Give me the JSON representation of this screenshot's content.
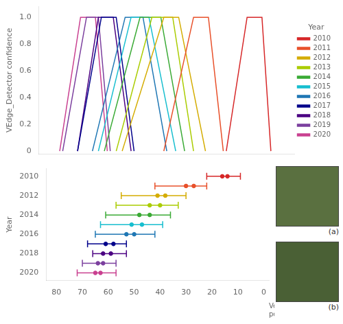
{
  "chart_data": [
    {
      "type": "line",
      "ylabel": "VEdge_Detector confidence",
      "legend_title": "Year",
      "legend": "right",
      "xlim": [
        84,
        -2
      ],
      "xticks": [
        80,
        70,
        60,
        50,
        40,
        30,
        20,
        10,
        0
      ],
      "ylim": [
        -0.02,
        1.08
      ],
      "yticks": [
        0,
        0.2,
        0.4,
        0.6,
        0.8,
        1
      ],
      "grid": false,
      "tick_labels": "y",
      "series": [
        {
          "name": "2010",
          "color": "#d62728",
          "x": [
            6,
            9,
            14,
            21
          ],
          "values": [
            0,
            1,
            1,
            0
          ]
        },
        {
          "name": "2011",
          "color": "#e8502a",
          "x": [
            22,
            27,
            32,
            42
          ],
          "values": [
            0,
            1,
            1,
            0
          ]
        },
        {
          "name": "2012",
          "color": "#d4ac00",
          "x": [
            28,
            37,
            42,
            56
          ],
          "values": [
            0,
            1,
            1,
            0
          ]
        },
        {
          "name": "2013",
          "color": "#aacc00",
          "x": [
            32,
            39,
            46,
            58
          ],
          "values": [
            0,
            1,
            1,
            0
          ]
        },
        {
          "name": "2014",
          "color": "#3aaa35",
          "x": [
            35,
            43,
            50,
            62
          ],
          "values": [
            0,
            1,
            1,
            0
          ]
        },
        {
          "name": "2015",
          "color": "#17becf",
          "x": [
            38,
            47,
            53,
            64
          ],
          "values": [
            0,
            1,
            1,
            0
          ]
        },
        {
          "name": "2016",
          "color": "#1f77b4",
          "x": [
            41,
            49,
            55,
            66
          ],
          "values": [
            0,
            1,
            1,
            0
          ]
        },
        {
          "name": "2017",
          "color": "#00008b",
          "x": [
            52,
            58,
            63,
            71
          ],
          "values": [
            0,
            1,
            1,
            0
          ]
        },
        {
          "name": "2018",
          "color": "#4b0082",
          "x": [
            53,
            59,
            64,
            71
          ],
          "values": [
            0,
            1,
            1,
            0
          ]
        },
        {
          "name": "2019",
          "color": "#7b3f9e",
          "x": [
            60,
            64,
            68,
            76
          ],
          "values": [
            0,
            1,
            1,
            0
          ]
        },
        {
          "name": "2020",
          "color": "#c94090",
          "x": [
            61,
            65,
            70,
            77
          ],
          "values": [
            0,
            1,
            1,
            0
          ]
        }
      ]
    },
    {
      "type": "range",
      "ylabel": "Year",
      "xlabel": "Vegetation curve\nposition (m)",
      "categories": [
        "2010",
        null,
        "2012",
        null,
        "2014",
        null,
        "2016",
        null,
        "2018",
        null,
        "2020"
      ],
      "bar_l": [
        9,
        22,
        30,
        33,
        36,
        39,
        42,
        53,
        53,
        57,
        57
      ],
      "bar_r": [
        22,
        42,
        55,
        57,
        61,
        63,
        65,
        68,
        66,
        70,
        72
      ],
      "dot1": [
        14,
        27,
        38,
        40,
        44,
        47,
        50,
        58,
        59,
        62,
        63
      ],
      "dot2": [
        16,
        30,
        41,
        44,
        48,
        51,
        53,
        61,
        62,
        64,
        65
      ],
      "colors": [
        "#d62728",
        "#e8502a",
        "#d4ac00",
        "#aacc00",
        "#3aaa35",
        "#17becf",
        "#1f77b4",
        "#00008b",
        "#4b0082",
        "#7b3f9e",
        "#c94090"
      ],
      "xlim": [
        84,
        -2
      ],
      "xticks": [
        80,
        70,
        60,
        50,
        40,
        30,
        20,
        10,
        0
      ],
      "grid": false,
      "annotations": [
        "(a)",
        "(b)"
      ]
    }
  ]
}
